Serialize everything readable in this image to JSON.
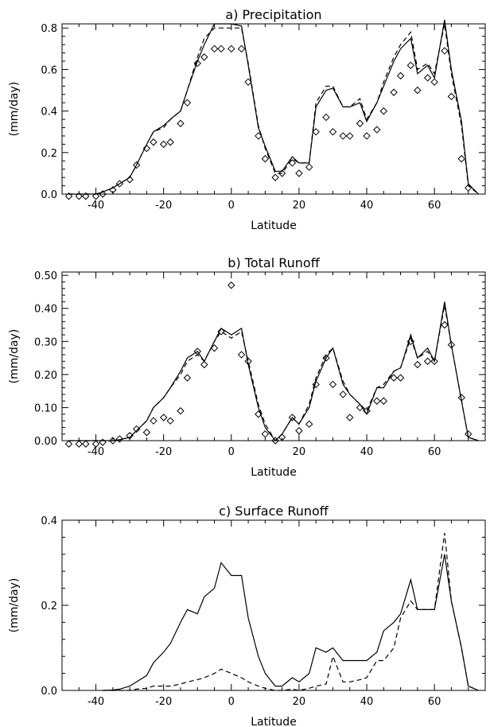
{
  "chart_data": [
    {
      "type": "line",
      "title": "a) Precipitation",
      "xlabel": "Latitude",
      "ylabel": "(mm/day)",
      "xlim": [
        -50,
        75
      ],
      "ylim": [
        0,
        0.82
      ],
      "xticks": [
        -40,
        -20,
        0,
        20,
        40,
        60
      ],
      "yticks": [
        0.0,
        0.2,
        0.4,
        0.6,
        0.8
      ],
      "ytick_labels": [
        "0.0",
        "0.2",
        "0.4",
        "0.6",
        "0.8"
      ],
      "series": [
        {
          "style": "solid",
          "x": [
            -48,
            -45,
            -43,
            -40,
            -38,
            -35,
            -33,
            -30,
            -28,
            -25,
            -23,
            -20,
            -18,
            -15,
            -13,
            -10,
            -8,
            -5,
            -3,
            0,
            3,
            5,
            8,
            10,
            13,
            15,
            18,
            20,
            23,
            25,
            28,
            30,
            33,
            35,
            38,
            40,
            43,
            45,
            48,
            50,
            53,
            55,
            58,
            60,
            63,
            65,
            68,
            70,
            73
          ],
          "y": [
            0.0,
            0.0,
            0.0,
            0.0,
            0.01,
            0.03,
            0.05,
            0.08,
            0.14,
            0.24,
            0.3,
            0.33,
            0.36,
            0.4,
            0.5,
            0.64,
            0.72,
            0.82,
            0.82,
            0.82,
            0.81,
            0.62,
            0.32,
            0.23,
            0.11,
            0.11,
            0.18,
            0.15,
            0.15,
            0.42,
            0.5,
            0.51,
            0.42,
            0.42,
            0.44,
            0.35,
            0.44,
            0.52,
            0.64,
            0.7,
            0.75,
            0.58,
            0.62,
            0.56,
            0.84,
            0.6,
            0.35,
            0.05,
            0.0
          ]
        },
        {
          "style": "dashed",
          "x": [
            -48,
            -45,
            -43,
            -40,
            -38,
            -35,
            -33,
            -30,
            -28,
            -25,
            -23,
            -20,
            -18,
            -15,
            -13,
            -10,
            -8,
            -5,
            -3,
            0,
            3,
            5,
            8,
            10,
            13,
            15,
            18,
            20,
            23,
            25,
            28,
            30,
            33,
            35,
            38,
            40,
            43,
            45,
            48,
            50,
            53,
            55,
            58,
            60,
            63,
            65,
            68,
            70,
            73
          ],
          "y": [
            0.0,
            0.0,
            0.0,
            0.0,
            0.01,
            0.03,
            0.05,
            0.08,
            0.14,
            0.24,
            0.3,
            0.32,
            0.36,
            0.4,
            0.5,
            0.66,
            0.75,
            0.8,
            0.8,
            0.8,
            0.8,
            0.63,
            0.33,
            0.22,
            0.1,
            0.1,
            0.17,
            0.15,
            0.15,
            0.44,
            0.52,
            0.52,
            0.42,
            0.42,
            0.46,
            0.36,
            0.44,
            0.54,
            0.66,
            0.72,
            0.78,
            0.6,
            0.63,
            0.58,
            0.82,
            0.58,
            0.33,
            0.04,
            0.0
          ]
        },
        {
          "style": "diamond",
          "x": [
            -48,
            -45,
            -43,
            -40,
            -38,
            -35,
            -33,
            -30,
            -28,
            -25,
            -23,
            -20,
            -18,
            -15,
            -13,
            -10,
            -8,
            -5,
            -3,
            0,
            3,
            5,
            8,
            10,
            13,
            15,
            18,
            20,
            23,
            25,
            28,
            30,
            33,
            35,
            38,
            40,
            43,
            45,
            48,
            50,
            53,
            55,
            58,
            60,
            63,
            65,
            68,
            70
          ],
          "y": [
            -0.01,
            -0.01,
            -0.01,
            -0.01,
            0.0,
            0.02,
            0.05,
            0.07,
            0.14,
            0.22,
            0.25,
            0.24,
            0.25,
            0.34,
            0.44,
            0.63,
            0.66,
            0.7,
            0.7,
            0.7,
            0.7,
            0.54,
            0.28,
            0.17,
            0.08,
            0.1,
            0.15,
            0.1,
            0.13,
            0.3,
            0.37,
            0.3,
            0.28,
            0.28,
            0.34,
            0.28,
            0.31,
            0.4,
            0.49,
            0.57,
            0.62,
            0.5,
            0.56,
            0.54,
            0.69,
            0.47,
            0.17,
            0.03
          ]
        }
      ]
    },
    {
      "type": "line",
      "title": "b) Total Runoff",
      "xlabel": "Latitude",
      "ylabel": "(mm/day)",
      "xlim": [
        -50,
        75
      ],
      "ylim": [
        0,
        0.51
      ],
      "xticks": [
        -40,
        -20,
        0,
        20,
        40,
        60
      ],
      "yticks": [
        0.0,
        0.1,
        0.2,
        0.3,
        0.4,
        0.5
      ],
      "ytick_labels": [
        "0.00",
        "0.10",
        "0.20",
        "0.30",
        "0.40",
        "0.50"
      ],
      "series": [
        {
          "style": "solid",
          "x": [
            -48,
            -45,
            -43,
            -40,
            -38,
            -35,
            -33,
            -30,
            -28,
            -25,
            -23,
            -20,
            -18,
            -15,
            -13,
            -10,
            -8,
            -5,
            -3,
            0,
            3,
            5,
            8,
            10,
            13,
            15,
            18,
            20,
            23,
            25,
            28,
            30,
            33,
            35,
            38,
            40,
            43,
            45,
            48,
            50,
            53,
            55,
            58,
            60,
            63,
            65,
            68,
            70,
            73
          ],
          "y": [
            0.0,
            0.0,
            0.0,
            0.0,
            0.0,
            0.0,
            0.003,
            0.01,
            0.03,
            0.06,
            0.1,
            0.13,
            0.16,
            0.21,
            0.25,
            0.27,
            0.24,
            0.3,
            0.34,
            0.32,
            0.34,
            0.23,
            0.1,
            0.04,
            0.0,
            0.02,
            0.07,
            0.05,
            0.1,
            0.18,
            0.25,
            0.28,
            0.17,
            0.14,
            0.11,
            0.08,
            0.16,
            0.16,
            0.21,
            0.22,
            0.32,
            0.25,
            0.28,
            0.24,
            0.42,
            0.29,
            0.12,
            0.01,
            0.0
          ]
        },
        {
          "style": "dashed",
          "x": [
            -48,
            -45,
            -43,
            -40,
            -38,
            -35,
            -33,
            -30,
            -28,
            -25,
            -23,
            -20,
            -18,
            -15,
            -13,
            -10,
            -8,
            -5,
            -3,
            0,
            3,
            5,
            8,
            10,
            13,
            15,
            18,
            20,
            23,
            25,
            28,
            30,
            33,
            35,
            38,
            40,
            43,
            45,
            48,
            50,
            53,
            55,
            58,
            60,
            63,
            65,
            68,
            70,
            73
          ],
          "y": [
            0.0,
            0.0,
            0.0,
            0.0,
            0.0,
            0.0,
            0.003,
            0.01,
            0.03,
            0.06,
            0.1,
            0.13,
            0.16,
            0.2,
            0.24,
            0.26,
            0.24,
            0.3,
            0.33,
            0.31,
            0.33,
            0.24,
            0.11,
            0.05,
            0.0,
            0.02,
            0.07,
            0.05,
            0.11,
            0.19,
            0.26,
            0.28,
            0.18,
            0.14,
            0.11,
            0.09,
            0.16,
            0.17,
            0.21,
            0.22,
            0.31,
            0.25,
            0.27,
            0.24,
            0.41,
            0.29,
            0.12,
            0.01,
            0.0
          ]
        },
        {
          "style": "diamond",
          "x": [
            -48,
            -45,
            -43,
            -40,
            -38,
            -35,
            -33,
            -30,
            -28,
            -25,
            -23,
            -20,
            -18,
            -15,
            -13,
            -10,
            -8,
            -5,
            -3,
            0,
            3,
            5,
            8,
            10,
            13,
            15,
            18,
            20,
            23,
            25,
            28,
            30,
            33,
            35,
            38,
            40,
            43,
            45,
            48,
            50,
            53,
            55,
            58,
            60,
            63,
            65,
            68,
            70
          ],
          "y": [
            -0.01,
            -0.01,
            -0.01,
            -0.01,
            -0.005,
            0.0,
            0.005,
            0.015,
            0.035,
            0.025,
            0.06,
            0.07,
            0.06,
            0.09,
            0.19,
            0.27,
            0.23,
            0.28,
            0.33,
            0.47,
            0.26,
            0.24,
            0.08,
            0.02,
            0.0,
            0.01,
            0.07,
            0.03,
            0.05,
            0.17,
            0.25,
            0.17,
            0.14,
            0.07,
            0.1,
            0.09,
            0.12,
            0.12,
            0.19,
            0.19,
            0.3,
            0.23,
            0.24,
            0.24,
            0.35,
            0.29,
            0.13,
            0.02
          ]
        }
      ]
    },
    {
      "type": "line",
      "title": "c) Surface Runoff",
      "xlabel": "Latitude",
      "ylabel": "(mm/day)",
      "xlim": [
        -50,
        75
      ],
      "ylim": [
        0,
        0.4
      ],
      "xticks": [
        -40,
        -20,
        0,
        20,
        40,
        60
      ],
      "yticks": [
        0.0,
        0.2,
        0.4
      ],
      "ytick_labels": [
        "0.0",
        "0.2",
        "0.4"
      ],
      "series": [
        {
          "style": "solid",
          "x": [
            -38,
            -35,
            -33,
            -30,
            -28,
            -25,
            -23,
            -20,
            -18,
            -15,
            -13,
            -10,
            -8,
            -5,
            -3,
            0,
            3,
            5,
            8,
            10,
            13,
            15,
            18,
            20,
            23,
            25,
            28,
            30,
            33,
            35,
            38,
            40,
            43,
            45,
            48,
            50,
            53,
            55,
            58,
            60,
            63,
            65,
            68,
            70,
            73
          ],
          "y": [
            0.0,
            0.001,
            0.003,
            0.01,
            0.02,
            0.035,
            0.065,
            0.09,
            0.11,
            0.16,
            0.19,
            0.18,
            0.22,
            0.24,
            0.3,
            0.27,
            0.27,
            0.17,
            0.08,
            0.04,
            0.01,
            0.01,
            0.03,
            0.02,
            0.04,
            0.1,
            0.09,
            0.1,
            0.07,
            0.07,
            0.07,
            0.07,
            0.09,
            0.14,
            0.16,
            0.18,
            0.26,
            0.19,
            0.19,
            0.19,
            0.32,
            0.21,
            0.1,
            0.01,
            0.0
          ]
        },
        {
          "style": "dashed",
          "x": [
            -38,
            -35,
            -33,
            -30,
            -28,
            -25,
            -23,
            -20,
            -18,
            -15,
            -13,
            -10,
            -8,
            -5,
            -3,
            0,
            3,
            5,
            8,
            10,
            13,
            15,
            18,
            20,
            23,
            25,
            28,
            30,
            33,
            35,
            38,
            40,
            43,
            45,
            48,
            50,
            53,
            55,
            58,
            60,
            63,
            65,
            68,
            70,
            73
          ],
          "y": [
            0.0,
            0.0,
            0.0,
            0.0,
            0.003,
            0.005,
            0.01,
            0.01,
            0.01,
            0.015,
            0.02,
            0.025,
            0.03,
            0.04,
            0.05,
            0.04,
            0.03,
            0.02,
            0.01,
            0.005,
            0.0,
            0.0,
            0.003,
            0.0,
            0.005,
            0.01,
            0.015,
            0.08,
            0.02,
            0.02,
            0.025,
            0.03,
            0.07,
            0.07,
            0.1,
            0.17,
            0.21,
            0.19,
            0.19,
            0.19,
            0.37,
            0.21,
            0.1,
            0.01,
            0.0
          ]
        }
      ]
    }
  ]
}
